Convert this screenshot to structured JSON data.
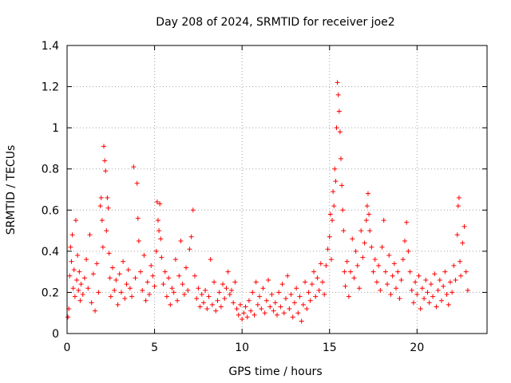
{
  "chart_data": {
    "type": "scatter",
    "title": "Day 208 of 2024, SRMTID for receiver joe2",
    "xlabel": "GPS time / hours",
    "ylabel": "SRMTID / TECUs",
    "xlim": [
      0,
      24
    ],
    "ylim": [
      0,
      1.4
    ],
    "xticks": [
      0,
      5,
      10,
      15,
      20
    ],
    "xtick_labels": [
      "0",
      "5",
      "10",
      "15",
      "20"
    ],
    "yticks": [
      0,
      0.2,
      0.4,
      0.6,
      0.8,
      1.0,
      1.2,
      1.4
    ],
    "ytick_labels": [
      "0",
      "0.2",
      "0.4",
      "0.6",
      "0.8",
      "1",
      "1.2",
      "1.4"
    ],
    "grid": true,
    "marker": "+",
    "color": "#ff0000",
    "series": [
      {
        "name": "SRMTID",
        "points": [
          [
            0.05,
            0.08
          ],
          [
            0.1,
            0.12
          ],
          [
            0.15,
            0.28
          ],
          [
            0.2,
            0.42
          ],
          [
            0.25,
            0.35
          ],
          [
            0.3,
            0.48
          ],
          [
            0.35,
            0.22
          ],
          [
            0.4,
            0.31
          ],
          [
            0.45,
            0.18
          ],
          [
            0.5,
            0.55
          ],
          [
            0.55,
            0.26
          ],
          [
            0.6,
            0.38
          ],
          [
            0.65,
            0.21
          ],
          [
            0.7,
            0.3
          ],
          [
            0.75,
            0.16
          ],
          [
            0.8,
            0.24
          ],
          [
            0.9,
            0.19
          ],
          [
            1.0,
            0.27
          ],
          [
            1.1,
            0.36
          ],
          [
            1.2,
            0.22
          ],
          [
            1.3,
            0.48
          ],
          [
            1.4,
            0.15
          ],
          [
            1.5,
            0.29
          ],
          [
            1.6,
            0.11
          ],
          [
            1.7,
            0.34
          ],
          [
            1.8,
            0.2
          ],
          [
            1.9,
            0.62
          ],
          [
            1.95,
            0.66
          ],
          [
            2.0,
            0.55
          ],
          [
            2.05,
            0.42
          ],
          [
            2.1,
            0.91
          ],
          [
            2.15,
            0.84
          ],
          [
            2.2,
            0.79
          ],
          [
            2.25,
            0.5
          ],
          [
            2.3,
            0.66
          ],
          [
            2.35,
            0.61
          ],
          [
            2.4,
            0.39
          ],
          [
            2.45,
            0.27
          ],
          [
            2.5,
            0.18
          ],
          [
            2.6,
            0.32
          ],
          [
            2.7,
            0.21
          ],
          [
            2.8,
            0.26
          ],
          [
            2.9,
            0.14
          ],
          [
            3.0,
            0.29
          ],
          [
            3.1,
            0.2
          ],
          [
            3.2,
            0.35
          ],
          [
            3.3,
            0.17
          ],
          [
            3.4,
            0.24
          ],
          [
            3.5,
            0.31
          ],
          [
            3.6,
            0.22
          ],
          [
            3.7,
            0.18
          ],
          [
            3.8,
            0.81
          ],
          [
            3.9,
            0.27
          ],
          [
            4.0,
            0.73
          ],
          [
            4.05,
            0.56
          ],
          [
            4.1,
            0.45
          ],
          [
            4.2,
            0.3
          ],
          [
            4.3,
            0.21
          ],
          [
            4.4,
            0.38
          ],
          [
            4.5,
            0.16
          ],
          [
            4.6,
            0.25
          ],
          [
            4.7,
            0.19
          ],
          [
            4.8,
            0.33
          ],
          [
            4.9,
            0.28
          ],
          [
            5.0,
            0.23
          ],
          [
            5.1,
            0.4
          ],
          [
            5.15,
            0.64
          ],
          [
            5.2,
            0.55
          ],
          [
            5.25,
            0.5
          ],
          [
            5.3,
            0.63
          ],
          [
            5.35,
            0.46
          ],
          [
            5.4,
            0.37
          ],
          [
            5.5,
            0.24
          ],
          [
            5.6,
            0.3
          ],
          [
            5.7,
            0.18
          ],
          [
            5.8,
            0.27
          ],
          [
            5.9,
            0.14
          ],
          [
            6.0,
            0.22
          ],
          [
            6.1,
            0.2
          ],
          [
            6.2,
            0.36
          ],
          [
            6.3,
            0.16
          ],
          [
            6.4,
            0.28
          ],
          [
            6.5,
            0.45
          ],
          [
            6.6,
            0.24
          ],
          [
            6.7,
            0.19
          ],
          [
            6.8,
            0.32
          ],
          [
            6.9,
            0.21
          ],
          [
            7.0,
            0.41
          ],
          [
            7.1,
            0.47
          ],
          [
            7.2,
            0.6
          ],
          [
            7.3,
            0.28
          ],
          [
            7.4,
            0.17
          ],
          [
            7.5,
            0.22
          ],
          [
            7.6,
            0.13
          ],
          [
            7.7,
            0.19
          ],
          [
            7.8,
            0.15
          ],
          [
            7.9,
            0.21
          ],
          [
            8.0,
            0.12
          ],
          [
            8.1,
            0.18
          ],
          [
            8.2,
            0.36
          ],
          [
            8.3,
            0.14
          ],
          [
            8.4,
            0.25
          ],
          [
            8.5,
            0.11
          ],
          [
            8.6,
            0.16
          ],
          [
            8.7,
            0.2
          ],
          [
            8.8,
            0.13
          ],
          [
            8.9,
            0.24
          ],
          [
            9.0,
            0.17
          ],
          [
            9.1,
            0.22
          ],
          [
            9.2,
            0.3
          ],
          [
            9.3,
            0.19
          ],
          [
            9.4,
            0.21
          ],
          [
            9.5,
            0.15
          ],
          [
            9.6,
            0.25
          ],
          [
            9.7,
            0.12
          ],
          [
            9.8,
            0.09
          ],
          [
            9.9,
            0.14
          ],
          [
            10.0,
            0.07
          ],
          [
            10.1,
            0.1
          ],
          [
            10.2,
            0.13
          ],
          [
            10.3,
            0.08
          ],
          [
            10.4,
            0.16
          ],
          [
            10.5,
            0.11
          ],
          [
            10.6,
            0.2
          ],
          [
            10.7,
            0.09
          ],
          [
            10.8,
            0.25
          ],
          [
            10.9,
            0.14
          ],
          [
            11.0,
            0.18
          ],
          [
            11.1,
            0.12
          ],
          [
            11.2,
            0.22
          ],
          [
            11.3,
            0.1
          ],
          [
            11.4,
            0.16
          ],
          [
            11.5,
            0.26
          ],
          [
            11.6,
            0.13
          ],
          [
            11.7,
            0.19
          ],
          [
            11.8,
            0.11
          ],
          [
            11.9,
            0.15
          ],
          [
            12.0,
            0.09
          ],
          [
            12.1,
            0.2
          ],
          [
            12.2,
            0.13
          ],
          [
            12.3,
            0.24
          ],
          [
            12.4,
            0.1
          ],
          [
            12.5,
            0.17
          ],
          [
            12.6,
            0.28
          ],
          [
            12.7,
            0.12
          ],
          [
            12.8,
            0.19
          ],
          [
            12.9,
            0.08
          ],
          [
            13.0,
            0.15
          ],
          [
            13.1,
            0.22
          ],
          [
            13.2,
            0.1
          ],
          [
            13.3,
            0.18
          ],
          [
            13.4,
            0.06
          ],
          [
            13.5,
            0.14
          ],
          [
            13.6,
            0.25
          ],
          [
            13.7,
            0.12
          ],
          [
            13.8,
            0.2
          ],
          [
            13.9,
            0.16
          ],
          [
            14.0,
            0.24
          ],
          [
            14.1,
            0.3
          ],
          [
            14.2,
            0.18
          ],
          [
            14.3,
            0.27
          ],
          [
            14.4,
            0.21
          ],
          [
            14.5,
            0.34
          ],
          [
            14.6,
            0.25
          ],
          [
            14.7,
            0.19
          ],
          [
            14.8,
            0.33
          ],
          [
            14.9,
            0.41
          ],
          [
            15.0,
            0.47
          ],
          [
            15.05,
            0.58
          ],
          [
            15.1,
            0.36
          ],
          [
            15.15,
            0.55
          ],
          [
            15.2,
            0.69
          ],
          [
            15.25,
            0.62
          ],
          [
            15.3,
            0.8
          ],
          [
            15.35,
            0.74
          ],
          [
            15.4,
            1.0
          ],
          [
            15.45,
            1.22
          ],
          [
            15.5,
            1.16
          ],
          [
            15.55,
            1.08
          ],
          [
            15.6,
            0.98
          ],
          [
            15.65,
            0.85
          ],
          [
            15.7,
            0.72
          ],
          [
            15.75,
            0.6
          ],
          [
            15.8,
            0.5
          ],
          [
            15.85,
            0.3
          ],
          [
            15.9,
            0.23
          ],
          [
            16.0,
            0.35
          ],
          [
            16.1,
            0.18
          ],
          [
            16.2,
            0.3
          ],
          [
            16.3,
            0.46
          ],
          [
            16.4,
            0.27
          ],
          [
            16.5,
            0.4
          ],
          [
            16.6,
            0.33
          ],
          [
            16.7,
            0.22
          ],
          [
            16.8,
            0.5
          ],
          [
            16.9,
            0.37
          ],
          [
            17.0,
            0.44
          ],
          [
            17.1,
            0.55
          ],
          [
            17.15,
            0.62
          ],
          [
            17.2,
            0.68
          ],
          [
            17.25,
            0.58
          ],
          [
            17.3,
            0.5
          ],
          [
            17.4,
            0.42
          ],
          [
            17.5,
            0.3
          ],
          [
            17.6,
            0.36
          ],
          [
            17.7,
            0.25
          ],
          [
            17.8,
            0.33
          ],
          [
            17.9,
            0.21
          ],
          [
            18.0,
            0.42
          ],
          [
            18.1,
            0.55
          ],
          [
            18.2,
            0.3
          ],
          [
            18.3,
            0.24
          ],
          [
            18.4,
            0.38
          ],
          [
            18.5,
            0.19
          ],
          [
            18.6,
            0.28
          ],
          [
            18.7,
            0.34
          ],
          [
            18.8,
            0.22
          ],
          [
            18.9,
            0.3
          ],
          [
            19.0,
            0.17
          ],
          [
            19.1,
            0.26
          ],
          [
            19.2,
            0.36
          ],
          [
            19.3,
            0.45
          ],
          [
            19.4,
            0.54
          ],
          [
            19.5,
            0.4
          ],
          [
            19.6,
            0.3
          ],
          [
            19.7,
            0.21
          ],
          [
            19.8,
            0.15
          ],
          [
            19.9,
            0.25
          ],
          [
            20.0,
            0.19
          ],
          [
            20.1,
            0.28
          ],
          [
            20.2,
            0.12
          ],
          [
            20.3,
            0.22
          ],
          [
            20.4,
            0.17
          ],
          [
            20.5,
            0.26
          ],
          [
            20.6,
            0.2
          ],
          [
            20.7,
            0.15
          ],
          [
            20.8,
            0.24
          ],
          [
            20.9,
            0.18
          ],
          [
            21.0,
            0.29
          ],
          [
            21.1,
            0.13
          ],
          [
            21.2,
            0.21
          ],
          [
            21.3,
            0.26
          ],
          [
            21.4,
            0.16
          ],
          [
            21.5,
            0.23
          ],
          [
            21.6,
            0.3
          ],
          [
            21.7,
            0.19
          ],
          [
            21.8,
            0.14
          ],
          [
            21.9,
            0.25
          ],
          [
            22.0,
            0.2
          ],
          [
            22.1,
            0.33
          ],
          [
            22.2,
            0.26
          ],
          [
            22.3,
            0.48
          ],
          [
            22.35,
            0.62
          ],
          [
            22.4,
            0.66
          ],
          [
            22.45,
            0.35
          ],
          [
            22.5,
            0.28
          ],
          [
            22.6,
            0.44
          ],
          [
            22.7,
            0.52
          ],
          [
            22.8,
            0.3
          ],
          [
            22.9,
            0.21
          ]
        ]
      }
    ]
  }
}
